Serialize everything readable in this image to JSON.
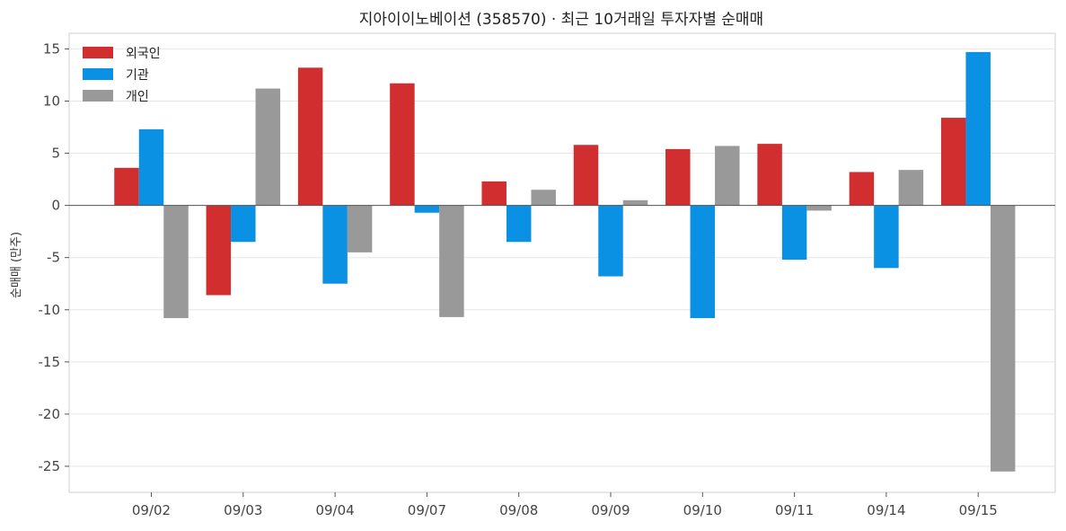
{
  "chart_data": {
    "type": "bar",
    "title": "지아이이노베이션 (358570) · 최근 10거래일 투자자별 순매매",
    "xlabel": "",
    "ylabel": "순매매 (만주)",
    "categories": [
      "09/02",
      "09/03",
      "09/04",
      "09/07",
      "09/08",
      "09/09",
      "09/10",
      "09/11",
      "09/14",
      "09/15"
    ],
    "ylim": [
      -27.5,
      16.5
    ],
    "yticks": [
      15,
      10,
      5,
      0,
      -5,
      -10,
      -15,
      -20,
      -25
    ],
    "ytick_labels": [
      "15",
      "10",
      "5",
      "0",
      "-5",
      "-10",
      "-15",
      "-20",
      "-25"
    ],
    "grid": true,
    "legend_position": "top-left",
    "series": [
      {
        "name": "외국인",
        "color": "#d12f2f",
        "values": [
          3.6,
          -8.6,
          13.2,
          11.7,
          2.3,
          5.8,
          5.4,
          5.9,
          3.2,
          8.4
        ]
      },
      {
        "name": "기관",
        "color": "#0a91e3",
        "values": [
          7.3,
          -3.5,
          -7.5,
          -0.7,
          -3.5,
          -6.8,
          -10.8,
          -5.2,
          -6.0,
          14.7
        ]
      },
      {
        "name": "개인",
        "color": "#999999",
        "values": [
          -10.8,
          11.2,
          -4.5,
          -10.7,
          1.5,
          0.5,
          5.7,
          -0.5,
          3.4,
          -25.5
        ]
      }
    ]
  }
}
